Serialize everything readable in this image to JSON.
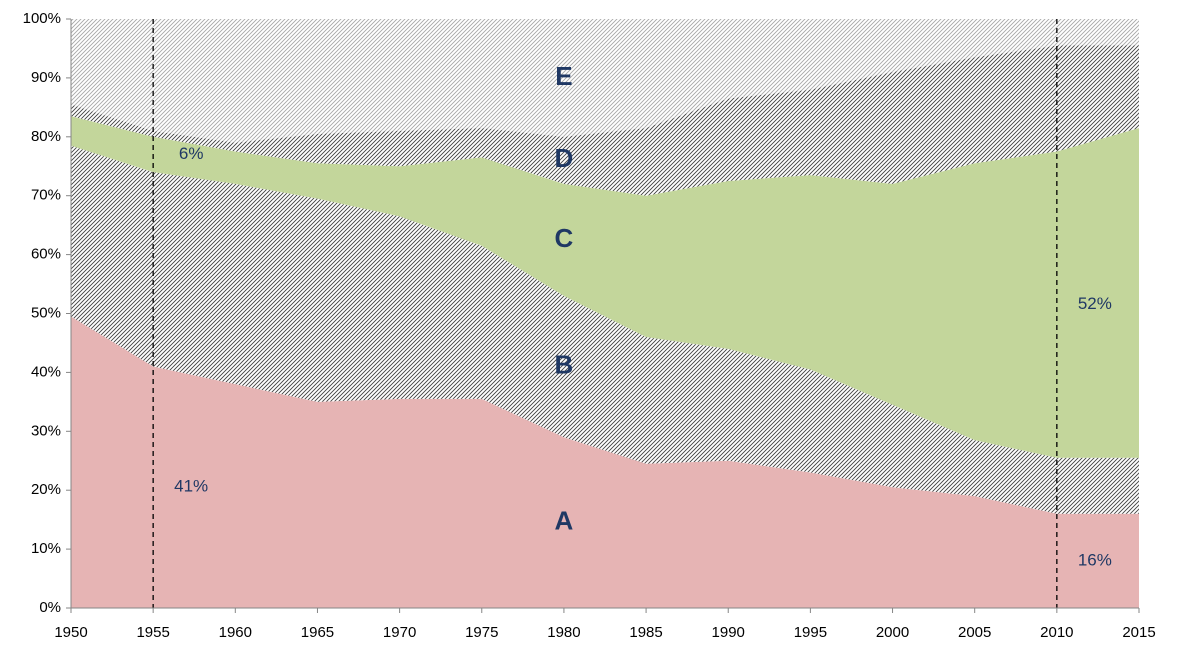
{
  "chart_data": {
    "type": "stacked_area",
    "x": [
      1950,
      1955,
      1960,
      1965,
      1970,
      1975,
      1980,
      1985,
      1990,
      1995,
      2000,
      2005,
      2010,
      2015
    ],
    "xlim": [
      1950,
      2015
    ],
    "xticks": [
      1950,
      1955,
      1960,
      1965,
      1970,
      1975,
      1980,
      1985,
      1990,
      1995,
      2000,
      2005,
      2010,
      2015
    ],
    "ylim": [
      0,
      100
    ],
    "yticks": [
      {
        "value": 0,
        "label": "0%"
      },
      {
        "value": 10,
        "label": "10%"
      },
      {
        "value": 20,
        "label": "20%"
      },
      {
        "value": 30,
        "label": "30%"
      },
      {
        "value": 40,
        "label": "40%"
      },
      {
        "value": 50,
        "label": "50%"
      },
      {
        "value": 60,
        "label": "60%"
      },
      {
        "value": 70,
        "label": "70%"
      },
      {
        "value": 80,
        "label": "80%"
      },
      {
        "value": 90,
        "label": "90%"
      },
      {
        "value": 100,
        "label": "100%"
      }
    ],
    "vlines": [
      1955,
      2010
    ],
    "series": [
      {
        "name": "A",
        "color": "#e6b4b4",
        "hatched": false,
        "values": [
          49.5,
          41,
          38,
          35,
          35.5,
          35.5,
          29,
          24.5,
          25,
          23,
          20.5,
          19,
          16,
          16
        ],
        "value_labels": [
          null,
          "41%",
          null,
          null,
          null,
          null,
          null,
          null,
          null,
          null,
          null,
          null,
          "16%",
          null
        ]
      },
      {
        "name": "B",
        "color": "#404040",
        "hatched": true,
        "values": [
          29,
          33,
          34,
          34.5,
          31,
          26,
          24,
          21.5,
          19,
          17.5,
          14,
          9.5,
          9.5,
          9.5
        ]
      },
      {
        "name": "C",
        "color": "#c3d69b",
        "hatched": false,
        "values": [
          5,
          6,
          5.5,
          6,
          8.5,
          15,
          19,
          24,
          28.5,
          33,
          37.5,
          47,
          52,
          56
        ],
        "value_labels": [
          null,
          "6%",
          null,
          null,
          null,
          null,
          null,
          null,
          null,
          null,
          null,
          null,
          "52%",
          null
        ]
      },
      {
        "name": "D",
        "color": "#404040",
        "hatched": true,
        "values": [
          2,
          1,
          1.5,
          5,
          6,
          5,
          8,
          11.5,
          14,
          14.5,
          19,
          18,
          18,
          14
        ]
      },
      {
        "name": "E",
        "color": "#a6a6a6",
        "hatched": true,
        "values": [
          14.5,
          19,
          21,
          19.5,
          19,
          18.5,
          20,
          18.5,
          13.5,
          12,
          9,
          6.5,
          4.5,
          4.5
        ]
      }
    ]
  }
}
